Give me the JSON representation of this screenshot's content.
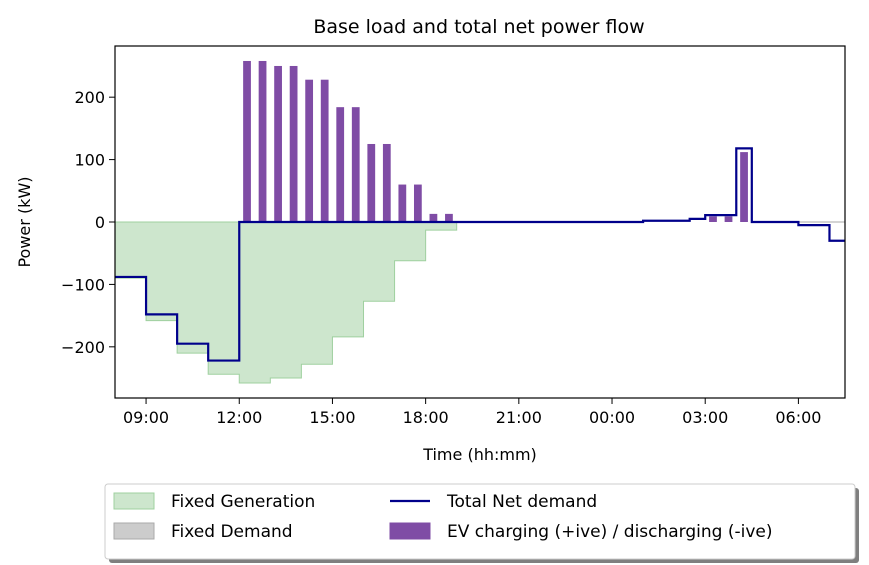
{
  "chart_data": {
    "type": "bar",
    "title": "Base load and total net power flow",
    "xlabel": "Time (hh:mm)",
    "ylabel": "Power (kW)",
    "x_start_hour": 8,
    "x_end_hour": 31.5,
    "xlim": [
      8,
      31.5
    ],
    "ylim": [
      -282,
      282
    ],
    "x_ticks": [
      {
        "hour": 9,
        "label": "09:00"
      },
      {
        "hour": 12,
        "label": "12:00"
      },
      {
        "hour": 15,
        "label": "15:00"
      },
      {
        "hour": 18,
        "label": "18:00"
      },
      {
        "hour": 21,
        "label": "21:00"
      },
      {
        "hour": 24,
        "label": "00:00"
      },
      {
        "hour": 27,
        "label": "03:00"
      },
      {
        "hour": 30,
        "label": "06:00"
      }
    ],
    "y_ticks": [
      {
        "value": 200,
        "label": "200"
      },
      {
        "value": 100,
        "label": "100"
      },
      {
        "value": 0,
        "label": "0"
      },
      {
        "value": -100,
        "label": "−100"
      },
      {
        "value": -200,
        "label": "−200"
      }
    ],
    "grid": false,
    "legend_position": "bottom",
    "series": [
      {
        "name": "Fixed Generation",
        "kind": "step-area",
        "color": "#cde6cd",
        "edge_color": "#9fd09f",
        "steps": [
          {
            "start": 8,
            "value": -90
          },
          {
            "start": 9,
            "value": -158
          },
          {
            "start": 10,
            "value": -210
          },
          {
            "start": 11,
            "value": -244
          },
          {
            "start": 12,
            "value": -258
          },
          {
            "start": 13,
            "value": -250
          },
          {
            "start": 14,
            "value": -228
          },
          {
            "start": 15,
            "value": -184
          },
          {
            "start": 16,
            "value": -127
          },
          {
            "start": 17,
            "value": -62
          },
          {
            "start": 18,
            "value": -13
          },
          {
            "start": 19,
            "value": 0
          }
        ],
        "end": 19
      },
      {
        "name": "Fixed Demand",
        "kind": "step-area",
        "color": "#cccccc",
        "edge_color": "#aaaaaa",
        "steps": [
          {
            "start": 30,
            "value": 0
          }
        ],
        "end": 31.5
      },
      {
        "name": "Total Net demand",
        "kind": "step-line",
        "color": "#00008b",
        "points": [
          [
            8,
            -88
          ],
          [
            9,
            -88
          ],
          [
            9,
            -148
          ],
          [
            10,
            -148
          ],
          [
            10,
            -195
          ],
          [
            11,
            -195
          ],
          [
            11,
            -222
          ],
          [
            12,
            -222
          ],
          [
            12,
            0
          ],
          [
            25,
            0
          ],
          [
            25,
            2
          ],
          [
            26.5,
            2
          ],
          [
            26.5,
            5
          ],
          [
            27,
            5
          ],
          [
            27,
            11
          ],
          [
            28,
            11
          ],
          [
            28,
            118
          ],
          [
            28.5,
            118
          ],
          [
            28.5,
            0
          ],
          [
            30,
            0
          ],
          [
            30,
            -5
          ],
          [
            31,
            -5
          ],
          [
            31,
            -30
          ],
          [
            31.5,
            -30
          ]
        ]
      },
      {
        "name": "EV charging (+ive) / discharging (-ive)",
        "kind": "bar",
        "color": "#7f4ca5",
        "bar_width_hours": 0.25,
        "bars": [
          {
            "x": 12.25,
            "value": 258
          },
          {
            "x": 12.75,
            "value": 258
          },
          {
            "x": 13.25,
            "value": 250
          },
          {
            "x": 13.75,
            "value": 250
          },
          {
            "x": 14.25,
            "value": 228
          },
          {
            "x": 14.75,
            "value": 228
          },
          {
            "x": 15.25,
            "value": 184
          },
          {
            "x": 15.75,
            "value": 184
          },
          {
            "x": 16.25,
            "value": 125
          },
          {
            "x": 16.75,
            "value": 125
          },
          {
            "x": 17.25,
            "value": 60
          },
          {
            "x": 17.75,
            "value": 60
          },
          {
            "x": 18.25,
            "value": 13
          },
          {
            "x": 18.75,
            "value": 13
          },
          {
            "x": 27.25,
            "value": 9
          },
          {
            "x": 27.75,
            "value": 9
          },
          {
            "x": 28.25,
            "value": 112
          }
        ]
      }
    ],
    "legend": [
      {
        "label": "Fixed Generation",
        "swatch": "patch",
        "color": "#cde6cd",
        "edge": "#9fd09f"
      },
      {
        "label": "Fixed Demand",
        "swatch": "patch",
        "color": "#cccccc",
        "edge": "#aaaaaa"
      },
      {
        "label": "Total Net demand",
        "swatch": "line",
        "color": "#00008b"
      },
      {
        "label": "EV charging (+ive) / discharging (-ive)",
        "swatch": "patch",
        "color": "#7f4ca5",
        "edge": "#7f4ca5"
      }
    ]
  }
}
